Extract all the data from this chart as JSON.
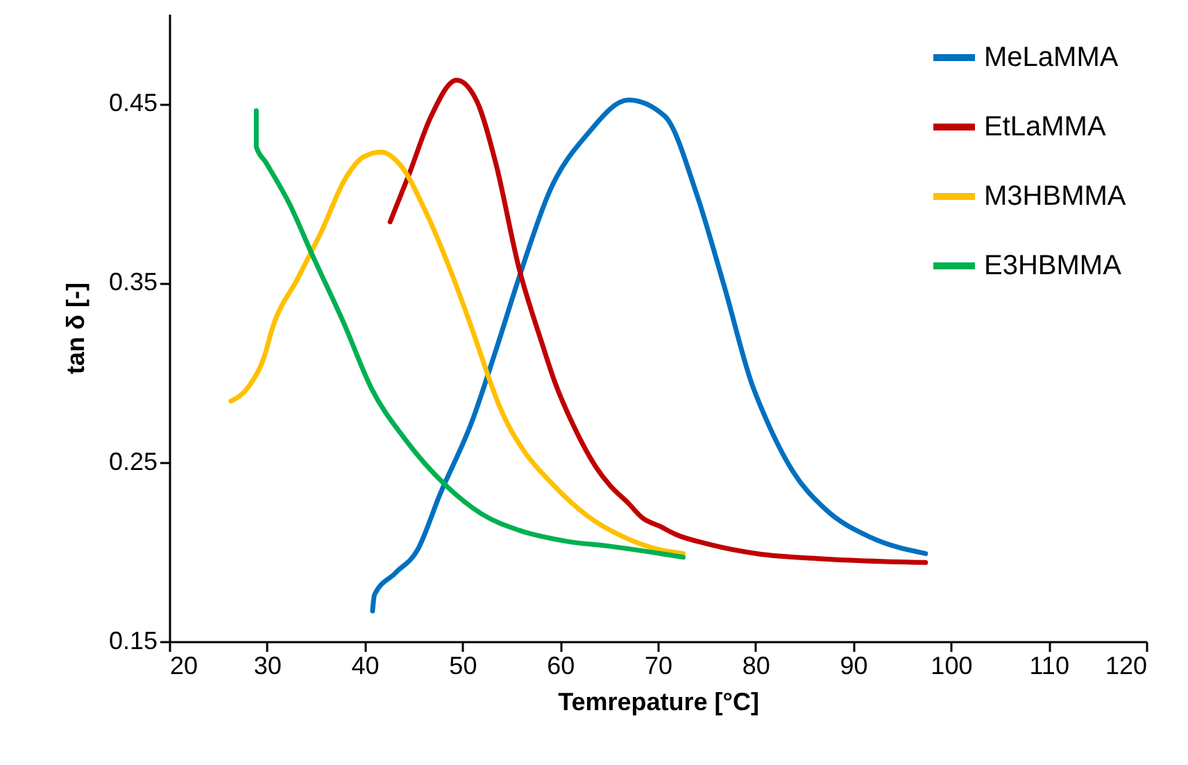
{
  "chart_data": {
    "type": "line",
    "xlabel": "Temrepature [°C]",
    "ylabel": "tan δ [-]",
    "xlim": [
      20,
      120
    ],
    "xticks": [
      20,
      30,
      40,
      50,
      60,
      70,
      80,
      90,
      100,
      110,
      120
    ],
    "ylim": [
      0.15,
      0.5
    ],
    "yticks": [
      0.15,
      0.25,
      0.35,
      0.45
    ],
    "grid": false,
    "legend": "top right",
    "marker": "none",
    "line_style": "solid",
    "series": [
      {
        "name": "MeLaMMA",
        "color": "#0070c0",
        "x": [
          40.8,
          41.0,
          43.1,
          45.4,
          47.7,
          51.0,
          53.4,
          55.8,
          59.0,
          62.8,
          67.0,
          70.7,
          74.0,
          76.8,
          79.6,
          81.0,
          83.8,
          87.1,
          91.8,
          97.4
        ],
        "values": [
          0.167,
          0.176,
          0.188,
          0.201,
          0.232,
          0.273,
          0.312,
          0.353,
          0.402,
          0.433,
          0.452,
          0.443,
          0.399,
          0.348,
          0.294,
          0.275,
          0.245,
          0.224,
          0.208,
          0.199
        ]
      },
      {
        "name": "EtLaMMA",
        "color": "#c00000",
        "x": [
          42.6,
          44.5,
          46.8,
          49.4,
          51.5,
          53.4,
          55.8,
          58.1,
          59.5,
          61.4,
          63.7,
          65.1,
          67.0,
          68.4,
          70.3,
          71.7,
          75.4,
          80.1,
          87.1,
          97.4
        ],
        "values": [
          0.384,
          0.41,
          0.443,
          0.463,
          0.451,
          0.417,
          0.358,
          0.317,
          0.294,
          0.27,
          0.247,
          0.237,
          0.227,
          0.219,
          0.214,
          0.21,
          0.204,
          0.199,
          0.196,
          0.194
        ]
      },
      {
        "name": "M3HBMMA",
        "color": "#ffc000",
        "x": [
          26.3,
          28.1,
          29.9,
          30.4,
          33.2,
          35.6,
          37.9,
          39.8,
          41.7,
          43.6,
          46.3,
          48.7,
          51.0,
          52.9,
          53.8,
          56.2,
          59.0,
          62.8,
          66.6,
          70.3,
          72.6
        ],
        "values": [
          0.284,
          0.292,
          0.312,
          0.322,
          0.353,
          0.379,
          0.407,
          0.42,
          0.423,
          0.416,
          0.389,
          0.358,
          0.324,
          0.294,
          0.281,
          0.257,
          0.239,
          0.22,
          0.208,
          0.201,
          0.199
        ]
      },
      {
        "name": "E3HBMMA",
        "color": "#00b050",
        "x": [
          28.9,
          28.9,
          29.9,
          32.3,
          34.6,
          37.9,
          40.7,
          44.1,
          48.3,
          52.0,
          55.8,
          60.5,
          65.2,
          70.3,
          72.6
        ],
        "values": [
          0.446,
          0.426,
          0.417,
          0.394,
          0.366,
          0.327,
          0.291,
          0.263,
          0.237,
          0.221,
          0.212,
          0.206,
          0.203,
          0.199,
          0.197
        ]
      }
    ]
  }
}
